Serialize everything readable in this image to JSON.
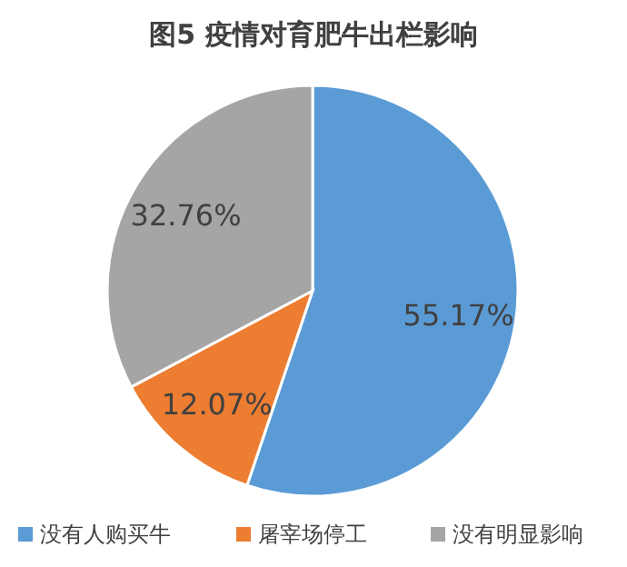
{
  "chart_data": {
    "type": "pie",
    "title": "图5 疫情对育肥牛出栏影响",
    "categories": [
      "没有人购买牛",
      "屠宰场停工",
      "没有明显影响"
    ],
    "values": [
      55.17,
      12.07,
      32.76
    ],
    "value_labels": [
      "55.17%",
      "12.07%",
      "32.76%"
    ],
    "colors": [
      "#5b9bd5",
      "#ed7d31",
      "#a5a5a5"
    ],
    "legend": "bottom"
  }
}
